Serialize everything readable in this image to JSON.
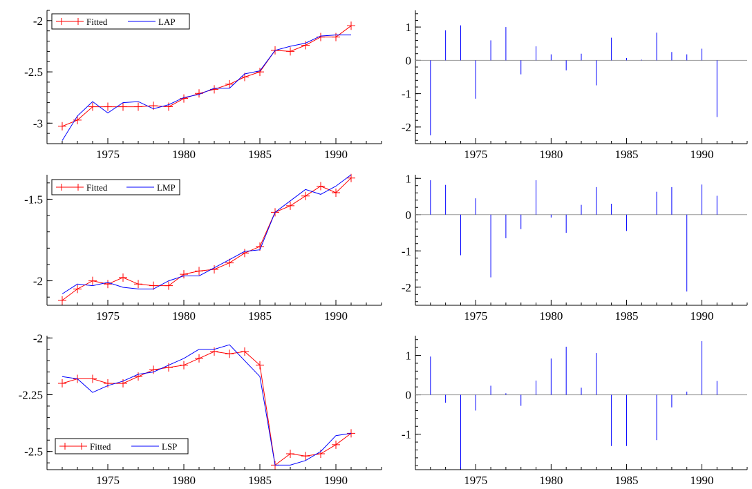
{
  "figure": {
    "colors": {
      "fitted": "#ff0000",
      "actual": "#0000ff",
      "residual": "#0000ff",
      "axis": "#000000",
      "zero_line": "#999999"
    }
  },
  "chart_data": [
    {
      "type": "line",
      "title": "",
      "xlabel": "",
      "ylabel": "",
      "xlim": [
        1971,
        1993
      ],
      "ylim": [
        -3.2,
        -1.9
      ],
      "xticks": [
        1975,
        1980,
        1985,
        1990
      ],
      "xtick_labels": [
        "1975",
        "1980",
        "1985",
        "1990"
      ],
      "yticks": [
        -3,
        -2.5,
        -2
      ],
      "ytick_labels": [
        "-3",
        "-2.5",
        "-2"
      ],
      "grid": false,
      "legend_position": "top-left",
      "x": [
        1972,
        1973,
        1974,
        1975,
        1976,
        1977,
        1978,
        1979,
        1980,
        1981,
        1982,
        1983,
        1984,
        1985,
        1986,
        1987,
        1988,
        1989,
        1990,
        1991
      ],
      "series": [
        {
          "name": "Fitted",
          "marker": "plus",
          "values": [
            -3.03,
            -2.97,
            -2.84,
            -2.84,
            -2.84,
            -2.84,
            -2.83,
            -2.84,
            -2.76,
            -2.71,
            -2.67,
            -2.62,
            -2.55,
            -2.5,
            -2.29,
            -2.3,
            -2.24,
            -2.16,
            -2.16,
            -2.05
          ]
        },
        {
          "name": "LAP",
          "marker": "none",
          "values": [
            -3.17,
            -2.93,
            -2.79,
            -2.9,
            -2.8,
            -2.79,
            -2.86,
            -2.82,
            -2.75,
            -2.72,
            -2.66,
            -2.66,
            -2.52,
            -2.49,
            -2.29,
            -2.25,
            -2.22,
            -2.15,
            -2.14,
            -2.14
          ]
        }
      ]
    },
    {
      "type": "bar",
      "title": "",
      "xlabel": "",
      "ylabel": "",
      "xlim": [
        1971,
        1993
      ],
      "ylim": [
        -2.5,
        1.5
      ],
      "xticks": [
        1975,
        1980,
        1985,
        1990
      ],
      "xtick_labels": [
        "1975",
        "1980",
        "1985",
        "1990"
      ],
      "yticks": [
        -2,
        -1,
        0,
        1
      ],
      "ytick_labels": [
        "-2",
        "-1",
        "0",
        "1"
      ],
      "grid": false,
      "x": [
        1972,
        1973,
        1974,
        1975,
        1976,
        1977,
        1978,
        1979,
        1980,
        1981,
        1982,
        1983,
        1984,
        1985,
        1986,
        1987,
        1988,
        1989,
        1990,
        1991
      ],
      "values": [
        -2.25,
        0.9,
        1.05,
        -1.15,
        0.6,
        1.0,
        -0.42,
        0.42,
        0.18,
        -0.3,
        0.2,
        -0.75,
        0.68,
        0.07,
        0.02,
        0.83,
        0.25,
        0.18,
        0.35,
        -1.7
      ]
    },
    {
      "type": "line",
      "title": "",
      "xlabel": "",
      "ylabel": "",
      "xlim": [
        1971,
        1993
      ],
      "ylim": [
        -2.15,
        -1.35
      ],
      "xticks": [
        1975,
        1980,
        1985,
        1990
      ],
      "xtick_labels": [
        "1975",
        "1980",
        "1985",
        "1990"
      ],
      "yticks": [
        -2,
        -1.5
      ],
      "ytick_labels": [
        "-2",
        "-1.5"
      ],
      "grid": false,
      "legend_position": "top-left",
      "x": [
        1972,
        1973,
        1974,
        1975,
        1976,
        1977,
        1978,
        1979,
        1980,
        1981,
        1982,
        1983,
        1984,
        1985,
        1986,
        1987,
        1988,
        1989,
        1990,
        1991
      ],
      "series": [
        {
          "name": "Fitted",
          "marker": "plus",
          "values": [
            -2.12,
            -2.05,
            -2.0,
            -2.02,
            -1.98,
            -2.02,
            -2.03,
            -2.03,
            -1.96,
            -1.94,
            -1.93,
            -1.89,
            -1.83,
            -1.79,
            -1.58,
            -1.54,
            -1.48,
            -1.42,
            -1.46,
            -1.37
          ]
        },
        {
          "name": "LMP",
          "marker": "none",
          "values": [
            -2.08,
            -2.02,
            -2.03,
            -2.01,
            -2.04,
            -2.05,
            -2.05,
            -2.0,
            -1.97,
            -1.97,
            -1.92,
            -1.87,
            -1.82,
            -1.81,
            -1.58,
            -1.51,
            -1.44,
            -1.47,
            -1.42,
            -1.35
          ]
        }
      ]
    },
    {
      "type": "bar",
      "title": "",
      "xlabel": "",
      "ylabel": "",
      "xlim": [
        1971,
        1993
      ],
      "ylim": [
        -2.5,
        1.1
      ],
      "xticks": [
        1975,
        1980,
        1985,
        1990
      ],
      "xtick_labels": [
        "1975",
        "1980",
        "1985",
        "1990"
      ],
      "yticks": [
        -2,
        -1,
        0,
        1
      ],
      "ytick_labels": [
        "-2",
        "-1",
        "0",
        "1"
      ],
      "grid": false,
      "x": [
        1972,
        1973,
        1974,
        1975,
        1976,
        1977,
        1978,
        1979,
        1980,
        1981,
        1982,
        1983,
        1984,
        1985,
        1986,
        1987,
        1988,
        1989,
        1990,
        1991
      ],
      "values": [
        0.95,
        0.82,
        -1.12,
        0.45,
        -1.73,
        -0.65,
        -0.4,
        0.95,
        -0.08,
        -0.5,
        0.27,
        0.76,
        0.3,
        -0.45,
        0.0,
        0.63,
        0.76,
        -2.12,
        0.83,
        0.52
      ]
    },
    {
      "type": "line",
      "title": "",
      "xlabel": "",
      "ylabel": "",
      "xlim": [
        1971,
        1993
      ],
      "ylim": [
        -2.58,
        -1.99
      ],
      "xticks": [
        1975,
        1980,
        1985,
        1990
      ],
      "xtick_labels": [
        "1975",
        "1980",
        "1985",
        "1990"
      ],
      "yticks": [
        -2.5,
        -2.25,
        -2
      ],
      "ytick_labels": [
        "-2.5",
        "-2.25",
        "-2"
      ],
      "grid": false,
      "legend_position": "bottom-left",
      "x": [
        1972,
        1973,
        1974,
        1975,
        1976,
        1977,
        1978,
        1979,
        1980,
        1981,
        1982,
        1983,
        1984,
        1985,
        1986,
        1987,
        1988,
        1989,
        1990,
        1991
      ],
      "series": [
        {
          "name": "Fitted",
          "marker": "plus",
          "values": [
            -2.2,
            -2.18,
            -2.18,
            -2.2,
            -2.2,
            -2.17,
            -2.14,
            -2.13,
            -2.12,
            -2.09,
            -2.06,
            -2.07,
            -2.06,
            -2.12,
            -2.56,
            -2.51,
            -2.52,
            -2.51,
            -2.47,
            -2.42
          ]
        },
        {
          "name": "LSP",
          "marker": "none",
          "values": [
            -2.17,
            -2.18,
            -2.24,
            -2.21,
            -2.19,
            -2.16,
            -2.15,
            -2.12,
            -2.09,
            -2.05,
            -2.05,
            -2.03,
            -2.1,
            -2.17,
            -2.56,
            -2.56,
            -2.54,
            -2.5,
            -2.43,
            -2.42
          ]
        }
      ]
    },
    {
      "type": "bar",
      "title": "",
      "xlabel": "",
      "ylabel": "",
      "xlim": [
        1971,
        1993
      ],
      "ylim": [
        -1.9,
        1.5
      ],
      "xticks": [
        1975,
        1980,
        1985,
        1990
      ],
      "xtick_labels": [
        "1975",
        "1980",
        "1985",
        "1990"
      ],
      "yticks": [
        -1,
        0,
        1
      ],
      "ytick_labels": [
        "-1",
        "0",
        "1"
      ],
      "grid": false,
      "x": [
        1972,
        1973,
        1974,
        1975,
        1976,
        1977,
        1978,
        1979,
        1980,
        1981,
        1982,
        1983,
        1984,
        1985,
        1986,
        1987,
        1988,
        1989,
        1990,
        1991
      ],
      "values": [
        0.97,
        -0.2,
        -1.88,
        -0.4,
        0.23,
        0.04,
        -0.28,
        0.36,
        0.92,
        1.22,
        0.18,
        1.06,
        -1.3,
        -1.3,
        0.0,
        -1.15,
        -0.32,
        0.08,
        1.36,
        0.35
      ]
    }
  ]
}
